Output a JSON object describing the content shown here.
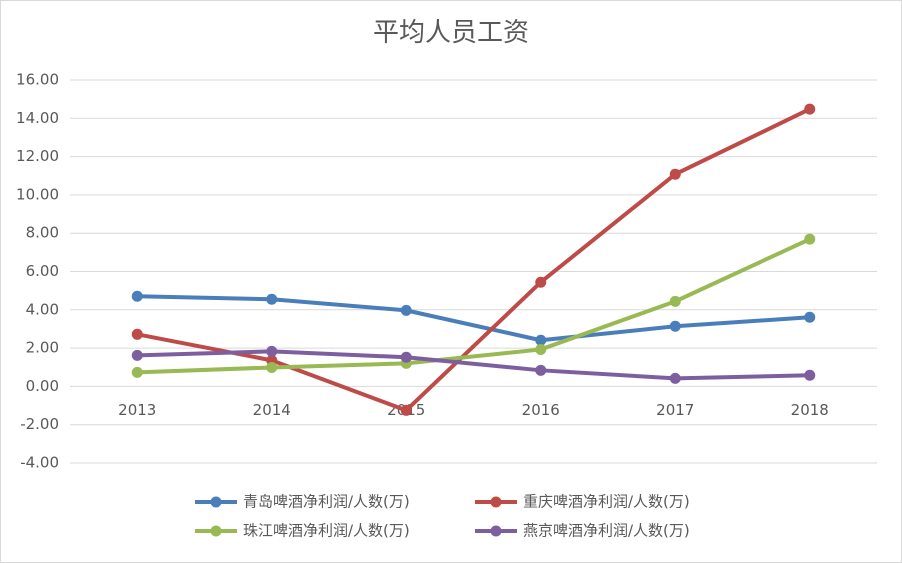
{
  "chart_data": {
    "type": "line",
    "title": "平均人员工资",
    "categories": [
      "2013",
      "2014",
      "2015",
      "2016",
      "2017",
      "2018"
    ],
    "series": [
      {
        "name": "青岛啤酒净利润/人数(万)",
        "color": "#4a7ebb",
        "values": [
          4.71,
          4.55,
          3.97,
          2.41,
          3.14,
          3.61
        ]
      },
      {
        "name": "重庆啤酒净利润/人数(万)",
        "color": "#be4b48",
        "values": [
          2.72,
          1.36,
          -1.25,
          5.44,
          11.08,
          14.48
        ]
      },
      {
        "name": "珠江啤酒净利润/人数(万)",
        "color": "#98b954",
        "values": [
          0.73,
          0.99,
          1.2,
          1.93,
          4.44,
          7.69
        ]
      },
      {
        "name": "燕京啤酒净利润/人数(万)",
        "color": "#7d5fa0",
        "values": [
          1.62,
          1.83,
          1.52,
          0.84,
          0.42,
          0.58
        ]
      }
    ],
    "ylim": [
      -4,
      16
    ],
    "yticks": [
      {
        "value": -4,
        "label": "-4.00"
      },
      {
        "value": -2,
        "label": "-2.00"
      },
      {
        "value": 0,
        "label": "0.00"
      },
      {
        "value": 2,
        "label": "2.00"
      },
      {
        "value": 4,
        "label": "4.00"
      },
      {
        "value": 6,
        "label": "6.00"
      },
      {
        "value": 8,
        "label": "8.00"
      },
      {
        "value": 10,
        "label": "10.00"
      },
      {
        "value": 12,
        "label": "12.00"
      },
      {
        "value": 14,
        "label": "14.00"
      },
      {
        "value": 16,
        "label": "16.00"
      }
    ],
    "grid": true
  }
}
